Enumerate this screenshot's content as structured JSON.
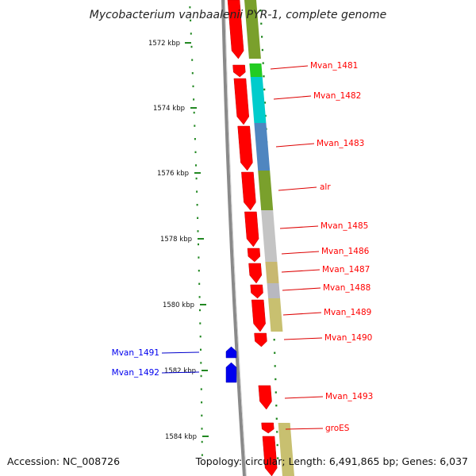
{
  "title": "Mycobacterium vanbaalenii PYR-1, complete genome",
  "footer": {
    "accession": "Accession: NC_008726",
    "summary": "Topology: circular; Length: 6,491,865 bp; Genes: 6,037"
  },
  "colors": {
    "forward": "#ff0000",
    "reverse": "#0000ee",
    "leader": "#dd0000",
    "reverse_leader": "#0000cc",
    "dots": "#228822",
    "backbone": "#8a8a8a"
  },
  "ticks": [
    "1572 kbp",
    "1574 kbp",
    "1576 kbp",
    "1578 kbp",
    "1580 kbp",
    "1582 kbp",
    "1584 kbp"
  ],
  "forward_genes": [
    "Mvan_1481",
    "Mvan_1482",
    "Mvan_1483",
    "alr",
    "Mvan_1485",
    "Mvan_1486",
    "Mvan_1487",
    "Mvan_1488",
    "Mvan_1489",
    "Mvan_1490",
    "Mvan_1493",
    "groES"
  ],
  "reverse_genes": [
    "Mvan_1491",
    "Mvan_1492"
  ],
  "cog_band_colors": [
    "#7aa02c",
    "#22cc22",
    "#00cccc",
    "#4f86c0",
    "#7aa02c",
    "#c4c4c4",
    "#c8b870",
    "#b8b8c0",
    "#c8c070",
    "#c8c070"
  ]
}
